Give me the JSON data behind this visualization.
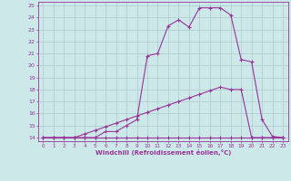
{
  "xlabel": "Windchill (Refroidissement éolien,°C)",
  "bg_color": "#cce8e8",
  "grid_color": "#aacccc",
  "line_color": "#993399",
  "xlim": [
    -0.5,
    23.5
  ],
  "ylim": [
    13.7,
    25.3
  ],
  "xticks": [
    0,
    1,
    2,
    3,
    4,
    5,
    6,
    7,
    8,
    9,
    10,
    11,
    12,
    13,
    14,
    15,
    16,
    17,
    18,
    19,
    20,
    21,
    22,
    23
  ],
  "yticks": [
    14,
    15,
    16,
    17,
    18,
    19,
    20,
    21,
    22,
    23,
    24,
    25
  ],
  "curve_a_x": [
    0,
    1,
    2,
    3,
    4,
    5,
    6,
    7,
    8,
    9,
    10,
    11,
    12,
    13,
    14,
    15,
    16,
    17,
    18,
    19,
    20,
    21,
    22,
    23
  ],
  "curve_a_y": [
    14,
    14,
    14,
    14,
    14,
    14,
    14,
    14,
    14,
    14,
    14,
    14,
    14,
    14,
    14,
    14,
    14,
    14,
    14,
    14,
    14,
    14,
    14,
    14
  ],
  "curve_b_x": [
    0,
    1,
    2,
    3,
    4,
    5,
    6,
    7,
    8,
    9,
    10,
    11,
    12,
    13,
    14,
    15,
    16,
    17,
    18,
    19,
    20,
    21,
    22,
    23
  ],
  "curve_b_y": [
    14,
    14,
    14,
    14,
    14.3,
    14.6,
    14.9,
    15.2,
    15.5,
    15.8,
    16.1,
    16.4,
    16.7,
    17.0,
    17.3,
    17.6,
    17.9,
    18.2,
    18.0,
    18.0,
    14.0,
    14.0,
    14.0,
    14.0
  ],
  "curve_c_x": [
    0,
    1,
    2,
    3,
    4,
    5,
    6,
    7,
    8,
    9,
    10,
    11,
    12,
    13,
    14,
    15,
    16,
    17,
    18,
    19,
    20,
    21,
    22,
    23
  ],
  "curve_c_y": [
    14,
    14,
    14,
    14,
    14,
    14,
    14.5,
    14.5,
    15.0,
    15.5,
    20.8,
    21.0,
    23.3,
    23.8,
    23.2,
    24.8,
    24.8,
    24.8,
    24.2,
    20.5,
    20.3,
    15.5,
    14.1,
    14.0
  ]
}
